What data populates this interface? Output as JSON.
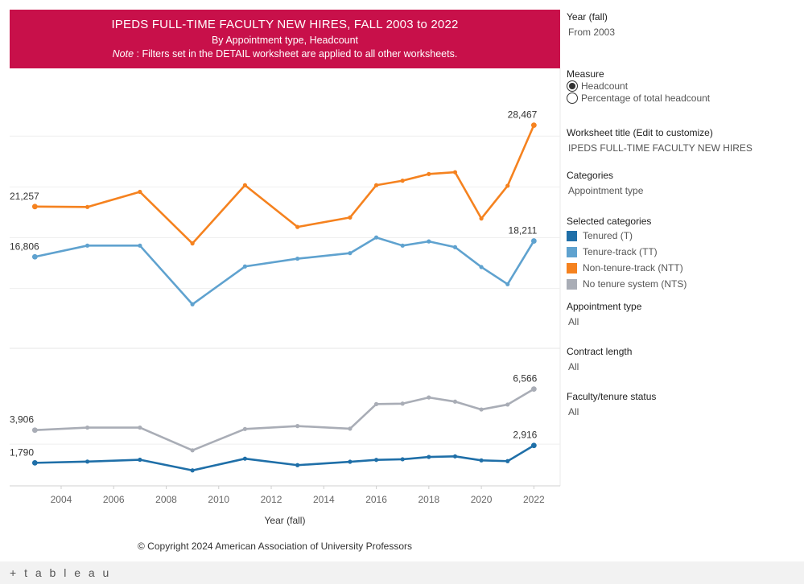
{
  "header": {
    "title": "IPEDS FULL-TIME FACULTY NEW HIRES, FALL 2003 to 2022",
    "subtitle": "By Appointment type, Headcount",
    "note_label": "Note",
    "note_text": " : Filters set in the DETAIL worksheet are applied to all other worksheets."
  },
  "sidebar": {
    "year_label": "Year (fall)",
    "year_value": "From 2003",
    "measure_label": "Measure",
    "measure_options": [
      "Headcount",
      "Percentage of total headcount"
    ],
    "measure_selected": "Headcount",
    "worksheet_title_label": "Worksheet title (Edit to customize)",
    "worksheet_title_value": "IPEDS FULL-TIME FACULTY NEW HIRES",
    "categories_label": "Categories",
    "categories_value": "Appointment type",
    "selected_label": "Selected categories",
    "legend": [
      {
        "name": "Tenured (T)",
        "color": "#1f6fa8"
      },
      {
        "name": "Tenure-track (TT)",
        "color": "#5fa2cf"
      },
      {
        "name": "Non-tenure-track (NTT)",
        "color": "#f5821f"
      },
      {
        "name": "No tenure system (NTS)",
        "color": "#a9adb6"
      }
    ],
    "appointment_label": "Appointment type",
    "appointment_value": "All",
    "contract_label": "Contract length",
    "contract_value": "All",
    "status_label": "Faculty/tenure status",
    "status_value": "All"
  },
  "copyright": "© Copyright 2024 American Association of University Professors",
  "logo": "+ t a b l e a u",
  "chart_data": {
    "type": "line",
    "xlabel": "Year (fall)",
    "x_ticks": [
      2004,
      2006,
      2008,
      2010,
      2012,
      2014,
      2016,
      2018,
      2020,
      2022
    ],
    "x": [
      2003,
      2005,
      2007,
      2009,
      2011,
      2013,
      2015,
      2016,
      2017,
      2018,
      2019,
      2020,
      2021,
      2022
    ],
    "panels": [
      {
        "ylim": [
          8700,
          33500
        ],
        "gridlines": [
          14000,
          18500,
          23000,
          27500
        ],
        "series": [
          {
            "name": "Non-tenure-track (NTT)",
            "color": "#f5821f",
            "values": [
              21257,
              21220,
              22560,
              17990,
              23150,
              19450,
              20290,
              23150,
              23550,
              24140,
              24300,
              20200,
              23100,
              28467
            ],
            "labels": {
              "0": "21,257",
              "13": "28,467"
            }
          },
          {
            "name": "Tenure-track (TT)",
            "color": "#5fa2cf",
            "values": [
              16806,
              17800,
              17800,
              12600,
              15950,
              16640,
              17130,
              18520,
              17800,
              18170,
              17660,
              15900,
              14380,
              18211
            ],
            "labels": {
              "0": "16,806",
              "13": "18,211"
            }
          }
        ]
      },
      {
        "ylim": [
          300,
          9200
        ],
        "gridlines": [
          3000
        ],
        "series": [
          {
            "name": "No tenure system (NTS)",
            "color": "#a9adb6",
            "values": [
              3906,
              4070,
              4070,
              2600,
              3980,
              4170,
              4000,
              5590,
              5620,
              6020,
              5750,
              5240,
              5560,
              6566
            ],
            "labels": {
              "0": "3,906",
              "13": "6,566"
            }
          },
          {
            "name": "Tenured (T)",
            "color": "#1f6fa8",
            "values": [
              1790,
              1870,
              1990,
              1300,
              2060,
              1640,
              1860,
              1980,
              2020,
              2170,
              2210,
              1950,
              1900,
              2916
            ],
            "labels": {
              "0": "1,790",
              "13": "2,916"
            }
          }
        ]
      }
    ]
  }
}
